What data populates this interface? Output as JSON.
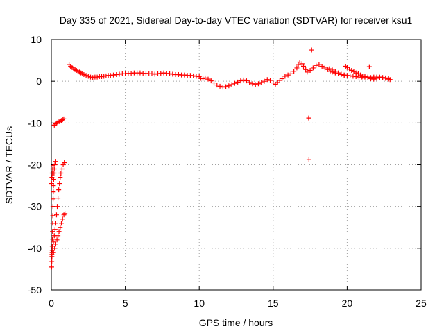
{
  "chart_data": {
    "type": "scatter",
    "title": "Day 335 of 2021, Sidereal Day-to-day VTEC variation (SDTVAR) for receiver ksu1",
    "xlabel": "GPS time / hours",
    "ylabel": "SDTVAR / TECUs",
    "xlim": [
      0,
      25
    ],
    "ylim": [
      -50,
      10
    ],
    "xticks": [
      0,
      5,
      10,
      15,
      20,
      25
    ],
    "yticks": [
      -50,
      -40,
      -30,
      -20,
      -10,
      0,
      10
    ],
    "grid": true,
    "legend": "none",
    "marker": "plus",
    "color": "#ff0000",
    "series": [
      {
        "name": "ksu1",
        "points": [
          [
            0.02,
            -44.5
          ],
          [
            0.03,
            -43.2
          ],
          [
            0.04,
            -42.0
          ],
          [
            0.05,
            -41.0
          ],
          [
            0.06,
            -39.5
          ],
          [
            0.07,
            -37.8
          ],
          [
            0.08,
            -36.0
          ],
          [
            0.09,
            -34.0
          ],
          [
            0.1,
            -32.2
          ],
          [
            0.11,
            -30.0
          ],
          [
            0.12,
            -28.2
          ],
          [
            0.13,
            -26.5
          ],
          [
            0.14,
            -25.0
          ],
          [
            0.16,
            -23.5
          ],
          [
            0.18,
            -22.0
          ],
          [
            0.2,
            -21.0
          ],
          [
            0.24,
            -20.0
          ],
          [
            0.3,
            -19.2
          ],
          [
            0.02,
            -24.5
          ],
          [
            0.04,
            -23.0
          ],
          [
            0.06,
            -22.0
          ],
          [
            0.09,
            -21.0
          ],
          [
            0.12,
            -20.2
          ],
          [
            0.04,
            -41.5
          ],
          [
            0.06,
            -40.5
          ],
          [
            0.1,
            -39.5
          ],
          [
            0.14,
            -38.5
          ],
          [
            0.2,
            -37.0
          ],
          [
            0.25,
            -35.5
          ],
          [
            0.3,
            -34.0
          ],
          [
            0.35,
            -32.0
          ],
          [
            0.4,
            -30.0
          ],
          [
            0.45,
            -28.0
          ],
          [
            0.5,
            -26.0
          ],
          [
            0.55,
            -24.5
          ],
          [
            0.6,
            -23.0
          ],
          [
            0.65,
            -22.0
          ],
          [
            0.72,
            -21.0
          ],
          [
            0.8,
            -20.0
          ],
          [
            0.88,
            -19.5
          ],
          [
            0.15,
            -41.0
          ],
          [
            0.22,
            -40.0
          ],
          [
            0.3,
            -39.0
          ],
          [
            0.38,
            -38.0
          ],
          [
            0.45,
            -37.0
          ],
          [
            0.52,
            -36.0
          ],
          [
            0.6,
            -35.0
          ],
          [
            0.68,
            -34.0
          ],
          [
            0.76,
            -33.0
          ],
          [
            0.85,
            -32.0
          ],
          [
            0.92,
            -31.7
          ],
          [
            0.2,
            -10.5
          ],
          [
            0.28,
            -10.2
          ],
          [
            0.36,
            -10.0
          ],
          [
            0.44,
            -9.9
          ],
          [
            0.52,
            -9.7
          ],
          [
            0.6,
            -9.5
          ],
          [
            0.68,
            -9.4
          ],
          [
            0.76,
            -9.2
          ],
          [
            0.84,
            -9.0
          ],
          [
            1.2,
            4.0
          ],
          [
            1.3,
            3.6
          ],
          [
            1.4,
            3.3
          ],
          [
            1.5,
            3.0
          ],
          [
            1.6,
            2.8
          ],
          [
            1.7,
            2.6
          ],
          [
            1.8,
            2.4
          ],
          [
            1.9,
            2.2
          ],
          [
            2.0,
            2.0
          ],
          [
            2.1,
            1.8
          ],
          [
            2.2,
            1.6
          ],
          [
            2.35,
            1.4
          ],
          [
            2.5,
            1.2
          ],
          [
            2.65,
            1.0
          ],
          [
            2.8,
            0.9
          ],
          [
            2.95,
            1.0
          ],
          [
            3.1,
            1.0
          ],
          [
            3.25,
            1.1
          ],
          [
            3.4,
            1.1
          ],
          [
            3.55,
            1.2
          ],
          [
            3.7,
            1.3
          ],
          [
            3.85,
            1.4
          ],
          [
            4.0,
            1.4
          ],
          [
            4.2,
            1.5
          ],
          [
            4.4,
            1.6
          ],
          [
            4.6,
            1.7
          ],
          [
            4.8,
            1.8
          ],
          [
            5.0,
            1.8
          ],
          [
            5.2,
            1.9
          ],
          [
            5.4,
            1.9
          ],
          [
            5.6,
            2.0
          ],
          [
            5.8,
            2.0
          ],
          [
            6.0,
            2.0
          ],
          [
            6.2,
            1.9
          ],
          [
            6.4,
            1.9
          ],
          [
            6.6,
            1.8
          ],
          [
            6.8,
            1.8
          ],
          [
            7.0,
            1.7
          ],
          [
            7.2,
            1.8
          ],
          [
            7.4,
            1.9
          ],
          [
            7.6,
            2.0
          ],
          [
            7.8,
            1.9
          ],
          [
            8.0,
            1.8
          ],
          [
            8.2,
            1.7
          ],
          [
            8.4,
            1.6
          ],
          [
            8.6,
            1.6
          ],
          [
            8.8,
            1.5
          ],
          [
            9.0,
            1.5
          ],
          [
            9.2,
            1.4
          ],
          [
            9.4,
            1.4
          ],
          [
            9.6,
            1.3
          ],
          [
            9.8,
            1.2
          ],
          [
            10.0,
            1.1
          ],
          [
            10.1,
            0.7
          ],
          [
            10.25,
            0.6
          ],
          [
            10.4,
            0.8
          ],
          [
            10.6,
            0.5
          ],
          [
            10.8,
            0.1
          ],
          [
            11.0,
            -0.4
          ],
          [
            11.2,
            -0.9
          ],
          [
            11.4,
            -1.2
          ],
          [
            11.6,
            -1.4
          ],
          [
            11.8,
            -1.3
          ],
          [
            12.0,
            -1.1
          ],
          [
            12.2,
            -0.8
          ],
          [
            12.4,
            -0.5
          ],
          [
            12.6,
            -0.2
          ],
          [
            12.8,
            0.1
          ],
          [
            13.0,
            0.3
          ],
          [
            13.2,
            0.1
          ],
          [
            13.4,
            -0.3
          ],
          [
            13.6,
            -0.6
          ],
          [
            13.8,
            -0.8
          ],
          [
            14.0,
            -0.6
          ],
          [
            14.2,
            -0.3
          ],
          [
            14.4,
            0.0
          ],
          [
            14.6,
            0.4
          ],
          [
            14.8,
            0.2
          ],
          [
            15.0,
            -0.4
          ],
          [
            15.15,
            -0.7
          ],
          [
            15.3,
            -0.3
          ],
          [
            15.45,
            0.2
          ],
          [
            15.6,
            0.6
          ],
          [
            15.8,
            1.2
          ],
          [
            16.0,
            1.5
          ],
          [
            16.2,
            1.8
          ],
          [
            16.4,
            2.4
          ],
          [
            16.6,
            3.2
          ],
          [
            16.7,
            4.0
          ],
          [
            16.8,
            4.6
          ],
          [
            16.95,
            4.2
          ],
          [
            17.05,
            3.6
          ],
          [
            17.2,
            2.8
          ],
          [
            17.3,
            2.2
          ],
          [
            17.5,
            2.6
          ],
          [
            17.7,
            3.2
          ],
          [
            17.9,
            3.8
          ],
          [
            18.1,
            4.0
          ],
          [
            18.3,
            3.6
          ],
          [
            18.5,
            3.2
          ],
          [
            18.7,
            2.8
          ],
          [
            18.85,
            2.4
          ],
          [
            19.0,
            2.2
          ],
          [
            19.2,
            2.0
          ],
          [
            19.4,
            1.8
          ],
          [
            19.6,
            1.6
          ],
          [
            19.8,
            1.4
          ],
          [
            20.0,
            1.4
          ],
          [
            20.2,
            1.3
          ],
          [
            20.4,
            1.2
          ],
          [
            20.6,
            1.1
          ],
          [
            20.8,
            1.0
          ],
          [
            21.0,
            1.0
          ],
          [
            21.2,
            1.1
          ],
          [
            21.4,
            1.0
          ],
          [
            21.6,
            0.9
          ],
          [
            21.8,
            1.0
          ],
          [
            22.0,
            1.0
          ],
          [
            22.2,
            0.9
          ],
          [
            22.4,
            0.8
          ],
          [
            22.6,
            0.8
          ],
          [
            22.8,
            0.6
          ],
          [
            22.9,
            0.4
          ],
          [
            18.8,
            3.0
          ],
          [
            19.0,
            2.7
          ],
          [
            19.2,
            2.4
          ],
          [
            19.4,
            2.0
          ],
          [
            19.6,
            1.7
          ],
          [
            19.8,
            1.5
          ],
          [
            19.9,
            3.6
          ],
          [
            20.0,
            3.3
          ],
          [
            20.15,
            2.9
          ],
          [
            20.3,
            2.6
          ],
          [
            20.45,
            2.3
          ],
          [
            20.6,
            2.0
          ],
          [
            20.75,
            1.8
          ],
          [
            20.9,
            1.5
          ],
          [
            21.05,
            1.2
          ],
          [
            21.2,
            1.0
          ],
          [
            21.4,
            0.8
          ],
          [
            21.6,
            0.6
          ],
          [
            21.8,
            0.5
          ],
          [
            22.0,
            0.7
          ],
          [
            22.2,
            1.0
          ],
          [
            22.4,
            0.9
          ],
          [
            22.6,
            0.7
          ],
          [
            22.8,
            0.5
          ],
          [
            17.6,
            7.5
          ],
          [
            21.5,
            3.5
          ],
          [
            17.4,
            -8.8
          ],
          [
            17.42,
            -18.8
          ]
        ]
      }
    ]
  }
}
